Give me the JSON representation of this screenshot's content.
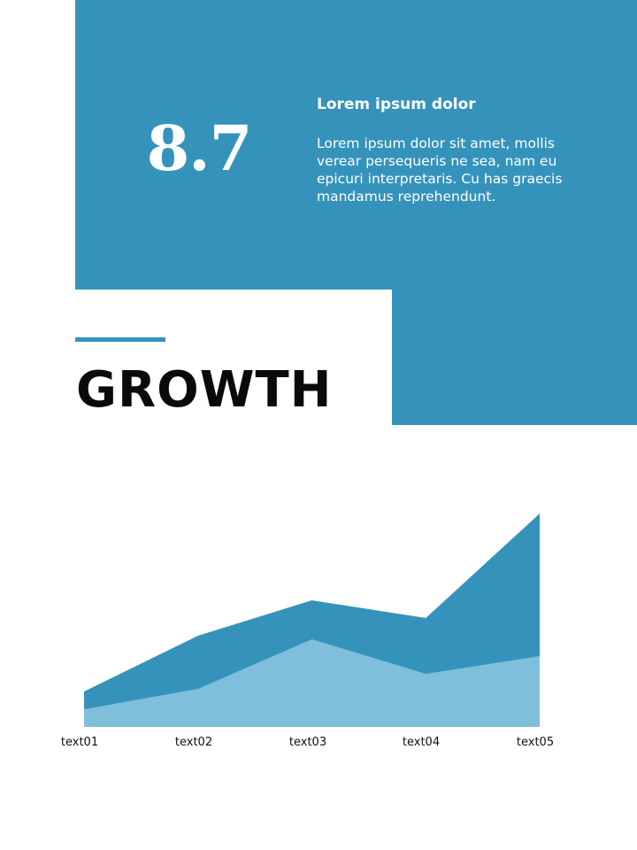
{
  "colors": {
    "accent": "#3593bb",
    "series_dark": "#3593bb",
    "series_light": "#7fbfdb",
    "text_dark": "#0a0a0a"
  },
  "stat": {
    "value": "8.7"
  },
  "info": {
    "title": "Lorem ipsum dolor",
    "body": "Lorem ipsum dolor sit amet, mollis verear persequeris ne sea, nam eu epicuri interpretaris. Cu has graecis mandamus reprehendunt."
  },
  "heading": "GROWTH",
  "chart_data": {
    "type": "area",
    "categories": [
      "text01",
      "text02",
      "text03",
      "text04",
      "text05"
    ],
    "series": [
      {
        "values": [
          40,
          103,
          143,
          123,
          241
        ],
        "color": "#3593bb"
      },
      {
        "values": [
          20,
          43,
          99,
          60,
          80
        ],
        "color": "#7fbfdb"
      }
    ],
    "ylim": [
      0,
      245
    ],
    "grid": false,
    "legend": "none"
  }
}
